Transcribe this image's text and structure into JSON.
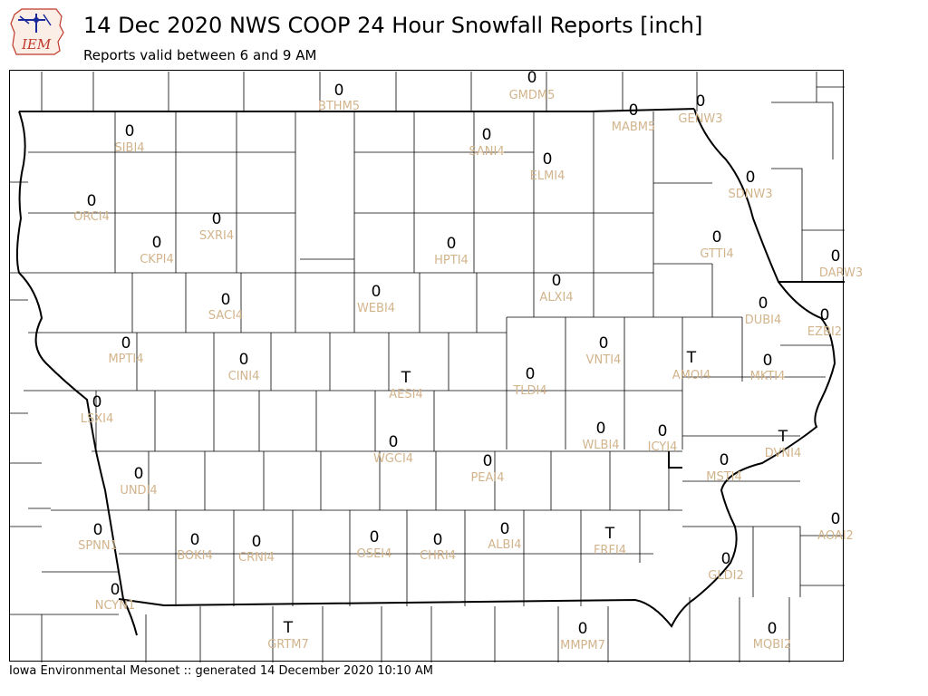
{
  "header": {
    "title": "14 Dec 2020 NWS COOP 24 Hour Snowfall Reports [inch]",
    "subtitle": "Reports valid between 6 and 9 AM"
  },
  "logo": {
    "text": "IEM",
    "icon": "iem-logo-icon"
  },
  "footer": {
    "text": "Iowa Environmental Mesonet :: generated 14 December 2020 10:10 AM"
  },
  "colors": {
    "value_text": "#000000",
    "station_text": "#d2b48c",
    "county_lines": "#000000"
  },
  "stations": [
    {
      "id": "BTHM5",
      "value": "0"
    },
    {
      "id": "GMDM5",
      "value": "0"
    },
    {
      "id": "MABM5",
      "value": "0"
    },
    {
      "id": "GENW3",
      "value": "0"
    },
    {
      "id": "SIBI4",
      "value": "0"
    },
    {
      "id": "SANI4",
      "value": "0"
    },
    {
      "id": "ELMI4",
      "value": "0"
    },
    {
      "id": "SDNW3",
      "value": "0"
    },
    {
      "id": "ORCI4",
      "value": "0"
    },
    {
      "id": "SXRI4",
      "value": "0"
    },
    {
      "id": "CKPI4",
      "value": "0"
    },
    {
      "id": "HPTI4",
      "value": "0"
    },
    {
      "id": "GTTI4",
      "value": "0"
    },
    {
      "id": "DARW3",
      "value": "0"
    },
    {
      "id": "ALXI4",
      "value": "0"
    },
    {
      "id": "WEBI4",
      "value": "0"
    },
    {
      "id": "SACI4",
      "value": "0"
    },
    {
      "id": "DUBI4",
      "value": "0"
    },
    {
      "id": "EZBI2",
      "value": "0"
    },
    {
      "id": "MPTI4",
      "value": "0"
    },
    {
      "id": "CINI4",
      "value": "0"
    },
    {
      "id": "VNTI4",
      "value": "0"
    },
    {
      "id": "AMOI4",
      "value": "T"
    },
    {
      "id": "MKTI4",
      "value": "0"
    },
    {
      "id": "AESI4",
      "value": "T"
    },
    {
      "id": "TLDI4",
      "value": "0"
    },
    {
      "id": "LSXI4",
      "value": "0"
    },
    {
      "id": "WLBI4",
      "value": "0"
    },
    {
      "id": "ICYI4",
      "value": "0"
    },
    {
      "id": "DVNI4",
      "value": "T"
    },
    {
      "id": "WGCI4",
      "value": "0"
    },
    {
      "id": "PEAI4",
      "value": "0"
    },
    {
      "id": "MSTI4",
      "value": "0"
    },
    {
      "id": "UNDI4",
      "value": "0"
    },
    {
      "id": "AOAI2",
      "value": "0"
    },
    {
      "id": "SPNN1",
      "value": "0"
    },
    {
      "id": "BOKI4",
      "value": "0"
    },
    {
      "id": "CRNI4",
      "value": "0"
    },
    {
      "id": "OSEI4",
      "value": "0"
    },
    {
      "id": "CHRI4",
      "value": "0"
    },
    {
      "id": "ALBI4",
      "value": "0"
    },
    {
      "id": "FRFI4",
      "value": "T"
    },
    {
      "id": "GLDI2",
      "value": "0"
    },
    {
      "id": "NCYN1",
      "value": "0"
    },
    {
      "id": "MMPM7",
      "value": "0"
    },
    {
      "id": "MQBI2",
      "value": "0"
    },
    {
      "id": "GRTM7",
      "value": "T"
    }
  ]
}
